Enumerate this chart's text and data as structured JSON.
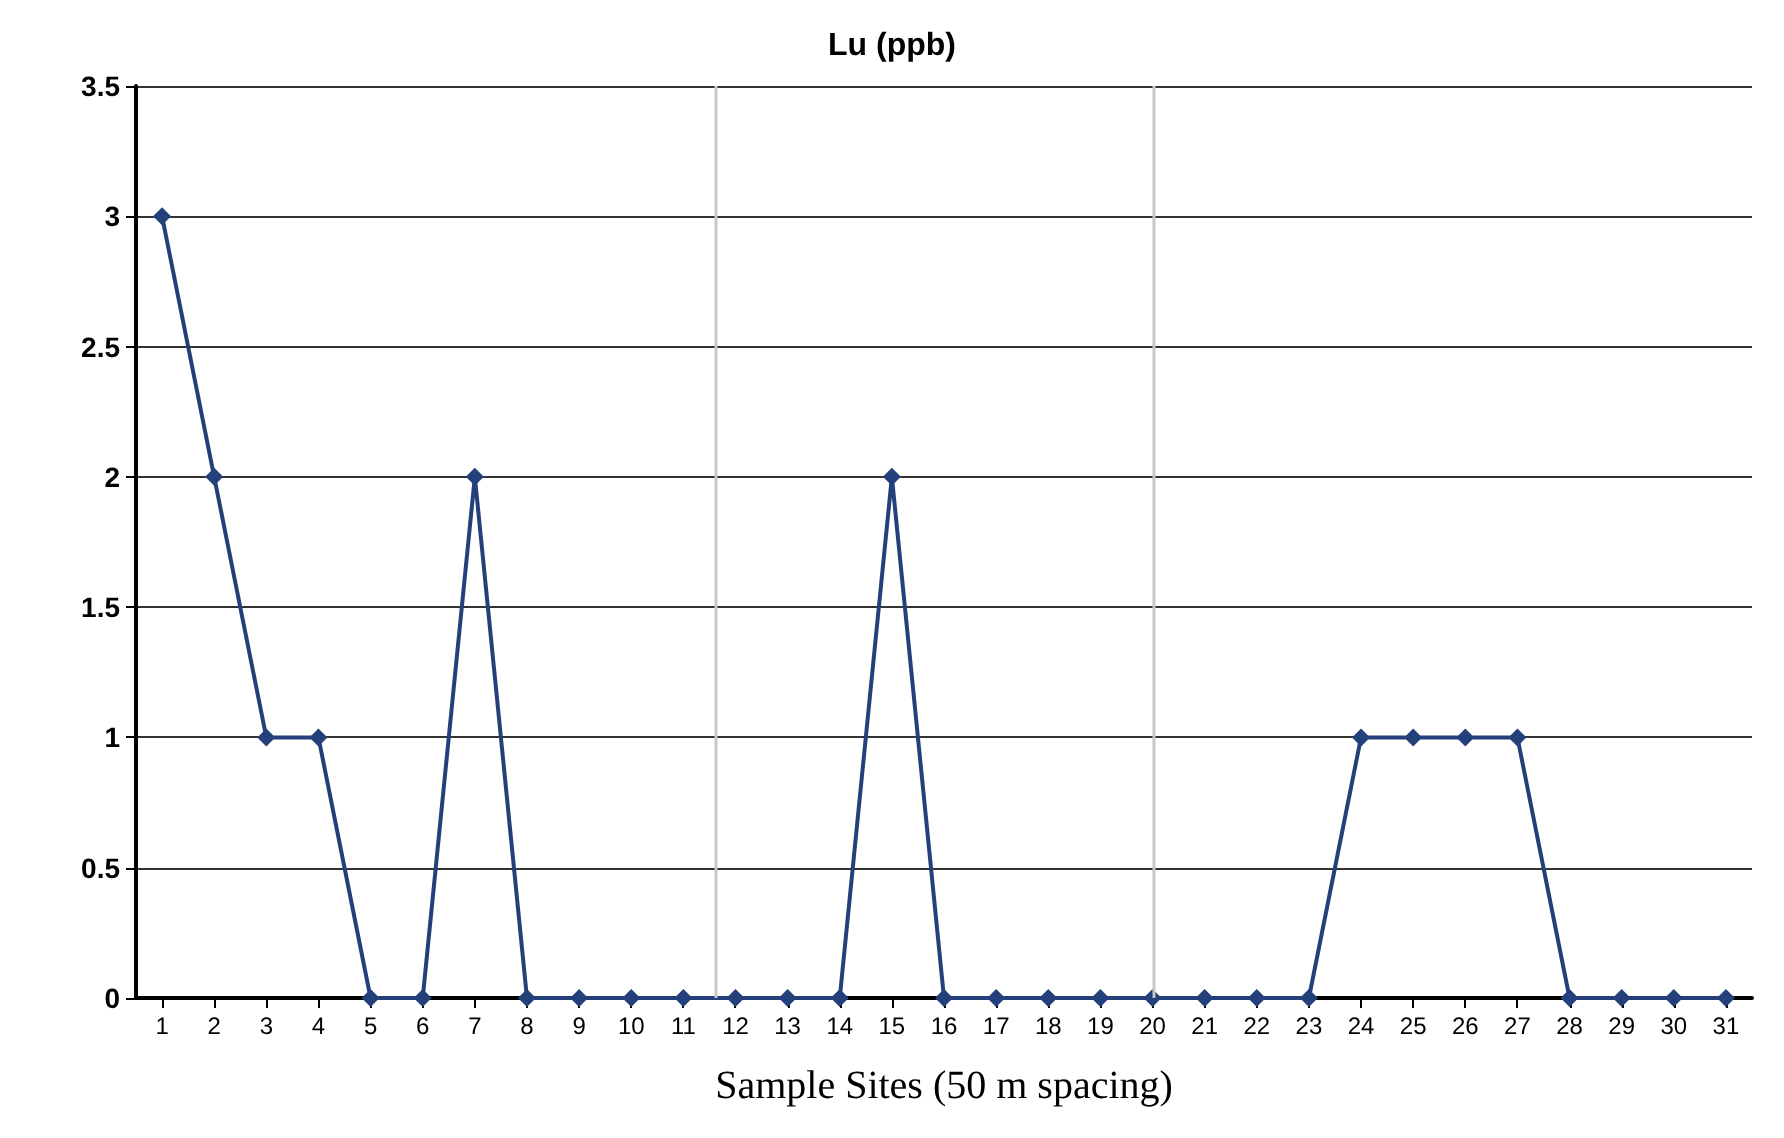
{
  "chart_data": {
    "type": "line",
    "title": "Lu (ppb)",
    "xlabel": "Sample Sites (50 m spacing)",
    "x": [
      1,
      2,
      3,
      4,
      5,
      6,
      7,
      8,
      9,
      10,
      11,
      12,
      13,
      14,
      15,
      16,
      17,
      18,
      19,
      20,
      21,
      22,
      23,
      24,
      25,
      26,
      27,
      28,
      29,
      30,
      31
    ],
    "series": [
      {
        "color": "#24407a",
        "values": [
          3,
          2,
          1,
          1,
          0,
          0,
          2,
          0,
          0,
          0,
          0,
          0,
          0,
          0,
          2,
          0,
          0,
          0,
          0,
          0,
          0,
          0,
          0,
          1,
          1,
          1,
          1,
          0,
          0,
          0,
          0
        ]
      }
    ],
    "xlim": [
      0.5,
      31.5
    ],
    "xticks": [
      1,
      2,
      3,
      4,
      5,
      6,
      7,
      8,
      9,
      10,
      11,
      12,
      13,
      14,
      15,
      16,
      17,
      18,
      19,
      20,
      21,
      22,
      23,
      24,
      25,
      26,
      27,
      28,
      29,
      30,
      31
    ],
    "ylim": [
      0,
      3.5
    ],
    "yticks": [
      0,
      0.5,
      1,
      1.5,
      2,
      2.5,
      3,
      3.5
    ],
    "ref_lines": [
      {
        "axis": "x",
        "value": 11.6,
        "color": "#c8c8c8"
      },
      {
        "axis": "x",
        "value": 20,
        "color": "#c8c8c8"
      }
    ],
    "grid": "y",
    "marker": "diamond",
    "line_style": "solid"
  }
}
